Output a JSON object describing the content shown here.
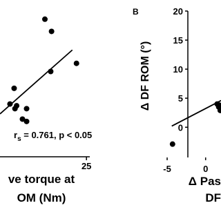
{
  "chart_data": [
    {
      "type": "scatter",
      "color": "#000000",
      "x_label_lines": [
        "ve torque at",
        "OM (Nm)"
      ],
      "annotation": {
        "symbol": "r",
        "subscript": "s",
        "text": " = 0.761, p < 0.05"
      },
      "x": [
        20,
        20.8,
        23.8,
        20.7,
        16.3,
        15.8,
        16.6,
        16.4,
        17.8,
        17.3,
        17.8
      ],
      "values": [
        18.6,
        16.5,
        11.0,
        9.6,
        6.7,
        4.0,
        3.7,
        3.2,
        3.2,
        1.4,
        1.0
      ],
      "fit_line": {
        "x": [
          14.6,
          23.3
        ],
        "y": [
          2.3,
          13.3
        ]
      },
      "xlim": [
        14.6,
        25.4
      ],
      "xticks": [
        25
      ],
      "ylim": [
        -5.2,
        20
      ]
    },
    {
      "type": "scatter",
      "color": "#000000",
      "panel_label": "B",
      "y_label": "Δ DF ROM (°)",
      "x_label_lines": [
        "Δ Pas",
        "DF"
      ],
      "x": [
        -4.3,
        1.7,
        1.5,
        1.9,
        1.8
      ],
      "values": [
        -2.9,
        3.5,
        4.0,
        2.9,
        3.8
      ],
      "fit_line": {
        "x": [
          -4.4,
          2.0
        ],
        "y": [
          0.2,
          4.6
        ]
      },
      "xlim": [
        -5.9,
        2.0
      ],
      "xticks": [
        -5,
        0
      ],
      "ylim": [
        -5.2,
        20
      ],
      "yticks": [
        20,
        15,
        10,
        5,
        0
      ]
    }
  ]
}
